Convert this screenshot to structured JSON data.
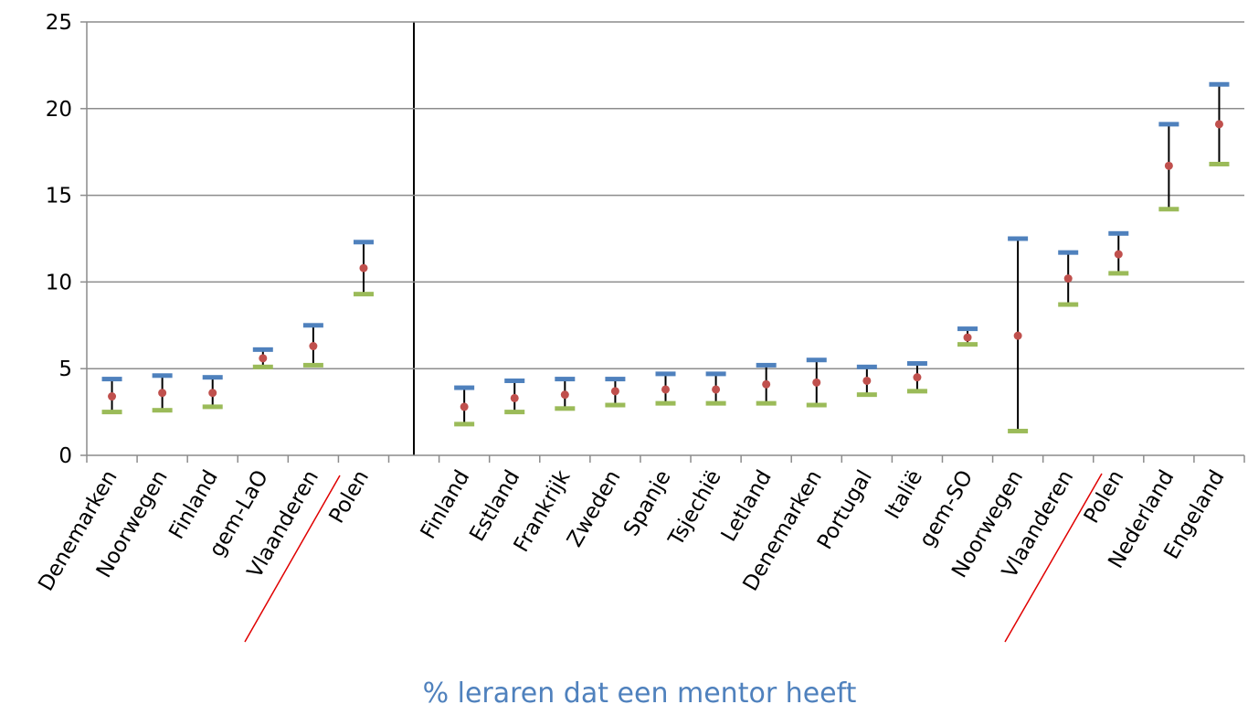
{
  "chart_data": {
    "type": "errorbar",
    "x_label": "% leraren dat een mentor heeft",
    "categories": [
      "Denemarken",
      "Noorwegen",
      "Finland",
      "gem-LaO",
      "Vlaanderen",
      "Polen",
      null,
      "Finland",
      "Estland",
      "Frankrijk",
      "Zweden",
      "Spanje",
      "Tsjechië",
      "Letland",
      "Denemarken",
      "Portugal",
      "Italië",
      "gem-SO",
      "Noorwegen",
      "Vlaanderen",
      "Polen",
      "Nederland",
      "Engeland"
    ],
    "series": [
      {
        "color": "#4f81bd",
        "values": [
          4.4,
          4.6,
          4.5,
          6.1,
          7.5,
          12.3,
          null,
          3.9,
          4.3,
          4.4,
          4.4,
          4.7,
          4.7,
          5.2,
          5.5,
          5.1,
          5.3,
          7.3,
          12.5,
          11.7,
          12.8,
          19.1,
          21.4
        ]
      },
      {
        "color": "#9bbb59",
        "values": [
          2.5,
          2.6,
          2.8,
          5.1,
          5.2,
          9.3,
          null,
          1.8,
          2.5,
          2.7,
          2.9,
          3.0,
          3.0,
          3.0,
          2.9,
          3.5,
          3.7,
          6.4,
          1.4,
          8.7,
          10.5,
          14.2,
          16.8
        ]
      },
      {
        "color": "#c0504d",
        "values": [
          3.4,
          3.6,
          3.6,
          5.6,
          6.3,
          10.8,
          null,
          2.8,
          3.3,
          3.5,
          3.7,
          3.8,
          3.8,
          4.1,
          4.2,
          4.3,
          4.5,
          6.8,
          6.9,
          10.2,
          11.6,
          16.7,
          19.1
        ]
      }
    ],
    "ylim": [
      0,
      25
    ],
    "yticks": [
      0,
      5,
      10,
      15,
      20,
      25
    ],
    "grid": true
  }
}
